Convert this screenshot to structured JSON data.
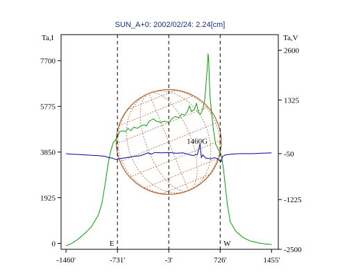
{
  "chart_data": {
    "type": "line",
    "title": "SUN_A+0: 2002/02/24: 2.24[cm]",
    "left_axis_label": "Ta,I",
    "right_axis_label": "Ta,V",
    "x_ticks": [
      {
        "value": -1460,
        "label": "-1460'"
      },
      {
        "value": -731,
        "label": "-731'"
      },
      {
        "value": -3,
        "label": "-3'"
      },
      {
        "value": 726,
        "label": "726'"
      },
      {
        "value": 1455,
        "label": "1455'"
      }
    ],
    "xlim": [
      -1530,
      1550
    ],
    "ylim_left": [
      -250,
      8800
    ],
    "ylim_right": [
      -2500,
      3000
    ],
    "left_ticks": [
      {
        "value": 0,
        "label": "0"
      },
      {
        "value": 1925,
        "label": "1925"
      },
      {
        "value": 3850,
        "label": "3850"
      },
      {
        "value": 5775,
        "label": "5775"
      },
      {
        "value": 7700,
        "label": "7700"
      }
    ],
    "right_ticks": [
      {
        "value": -2500,
        "label": "-2500"
      },
      {
        "value": -1225,
        "label": "-1225"
      },
      {
        "value": -50,
        "label": "-50"
      },
      {
        "value": 1325,
        "label": "1325"
      },
      {
        "value": 2600,
        "label": "2600"
      }
    ],
    "limb_markers": [
      {
        "x": -731,
        "label": "E"
      },
      {
        "x": -3,
        "label": ""
      },
      {
        "x": 726,
        "label": "W"
      }
    ],
    "annotation": {
      "text": "1460G",
      "x": 430,
      "y": 4150
    },
    "solar_disk": {
      "center_x": -3,
      "radius_arcmin_x": 745
    },
    "series": [
      {
        "name": "I",
        "axis": "left",
        "color": "#00a000",
        "points": [
          [
            -1460,
            -100
          ],
          [
            -1380,
            0
          ],
          [
            -1300,
            150
          ],
          [
            -1200,
            400
          ],
          [
            -1100,
            700
          ],
          [
            -1000,
            1200
          ],
          [
            -950,
            1700
          ],
          [
            -900,
            2600
          ],
          [
            -860,
            3400
          ],
          [
            -830,
            3850
          ],
          [
            -790,
            4250
          ],
          [
            -750,
            4400
          ],
          [
            -700,
            4700
          ],
          [
            -650,
            4750
          ],
          [
            -620,
            4700
          ],
          [
            -580,
            4850
          ],
          [
            -540,
            4750
          ],
          [
            -500,
            4900
          ],
          [
            -450,
            4850
          ],
          [
            -400,
            4950
          ],
          [
            -350,
            5000
          ],
          [
            -320,
            4950
          ],
          [
            -280,
            5150
          ],
          [
            -220,
            5250
          ],
          [
            -180,
            5150
          ],
          [
            -120,
            5100
          ],
          [
            -60,
            5150
          ],
          [
            0,
            5100
          ],
          [
            40,
            5250
          ],
          [
            90,
            5350
          ],
          [
            140,
            5300
          ],
          [
            180,
            5450
          ],
          [
            220,
            5400
          ],
          [
            260,
            5550
          ],
          [
            290,
            5800
          ],
          [
            320,
            5550
          ],
          [
            360,
            5650
          ],
          [
            390,
            5900
          ],
          [
            420,
            5500
          ],
          [
            450,
            5450
          ],
          [
            480,
            5650
          ],
          [
            510,
            6100
          ],
          [
            530,
            6900
          ],
          [
            545,
            7500
          ],
          [
            555,
            8000
          ],
          [
            565,
            7600
          ],
          [
            580,
            6300
          ],
          [
            600,
            5600
          ],
          [
            630,
            4800
          ],
          [
            660,
            4200
          ],
          [
            700,
            3950
          ],
          [
            740,
            3750
          ],
          [
            770,
            3200
          ],
          [
            800,
            2400
          ],
          [
            830,
            1600
          ],
          [
            870,
            900
          ],
          [
            950,
            500
          ],
          [
            1050,
            250
          ],
          [
            1150,
            100
          ],
          [
            1300,
            0
          ],
          [
            1455,
            -50
          ]
        ]
      },
      {
        "name": "V",
        "axis": "right",
        "color": "#00009a",
        "points": [
          [
            -1460,
            -50
          ],
          [
            -1400,
            -60
          ],
          [
            -1300,
            -70
          ],
          [
            -1200,
            -80
          ],
          [
            -1100,
            -90
          ],
          [
            -1000,
            -100
          ],
          [
            -900,
            -120
          ],
          [
            -860,
            -150
          ],
          [
            -800,
            -160
          ],
          [
            -760,
            -200
          ],
          [
            -700,
            -180
          ],
          [
            -600,
            -150
          ],
          [
            -500,
            -120
          ],
          [
            -400,
            -100
          ],
          [
            -300,
            -30
          ],
          [
            -250,
            -60
          ],
          [
            -200,
            -20
          ],
          [
            -100,
            -30
          ],
          [
            0,
            -20
          ],
          [
            100,
            -40
          ],
          [
            200,
            -30
          ],
          [
            300,
            -80
          ],
          [
            350,
            -100
          ],
          [
            380,
            -70
          ],
          [
            400,
            -80
          ],
          [
            420,
            50
          ],
          [
            440,
            200
          ],
          [
            460,
            -150
          ],
          [
            480,
            -80
          ],
          [
            520,
            -160
          ],
          [
            600,
            -180
          ],
          [
            650,
            -150
          ],
          [
            700,
            -200
          ],
          [
            740,
            -250
          ],
          [
            760,
            -120
          ],
          [
            800,
            -80
          ],
          [
            900,
            -60
          ],
          [
            1000,
            -50
          ],
          [
            1100,
            -50
          ],
          [
            1200,
            -50
          ],
          [
            1300,
            -40
          ],
          [
            1455,
            -30
          ]
        ]
      }
    ],
    "colors": {
      "frame": "#000000",
      "disk": "#b06030",
      "title": "#1a2a8a"
    }
  }
}
